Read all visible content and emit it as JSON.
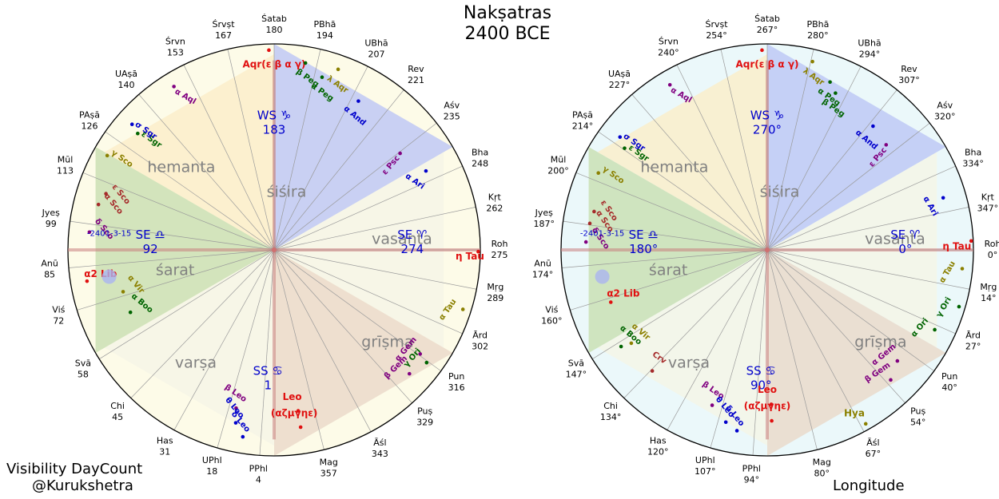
{
  "title": [
    "Nakṣatras",
    "2400 BCE"
  ],
  "footer": {
    "left_line1": "Visibility DayCount",
    "left_line2": "@Kurukshetra",
    "right": "Longitude"
  },
  "colors": {
    "left_background": "#fdfbe8",
    "right_background": "#ebf8fa",
    "sisira": "#bcc6f5",
    "vasanta": "#f5f5e6",
    "grisma": "#ead8c8",
    "varsa": "#f5f5e6",
    "sarat": "#c8dfb0",
    "hemanta": "#fbeec8",
    "axis": "#c97d7d",
    "season_text": "#808080",
    "marker_text": "#0000cc",
    "red": "#e01010",
    "green": "#006400",
    "blue": "#0000cc",
    "purple": "#800080",
    "olive": "#8b8000",
    "brown": "#a52a2a"
  },
  "seasons": [
    "śiśira",
    "vasanta",
    "grīṣma",
    "varṣa",
    "śarat",
    "hemanta"
  ],
  "date_label": "-2401-3-15",
  "left_chart": {
    "markers": [
      {
        "name": "WS ♑",
        "value": "183"
      },
      {
        "name": "SE ♈",
        "value": "274"
      },
      {
        "name": "SS ♋",
        "value": "1"
      },
      {
        "name": "SE ♎",
        "value": "92"
      }
    ],
    "nakshatras": [
      {
        "name": "Śatab",
        "value": "180",
        "angle": 90
      },
      {
        "name": "PBhā",
        "value": "194",
        "angle": 77
      },
      {
        "name": "UBhā",
        "value": "207",
        "angle": 63
      },
      {
        "name": "Rev",
        "value": "221",
        "angle": 51
      },
      {
        "name": "Aśv",
        "value": "235",
        "angle": 38
      },
      {
        "name": "Bha",
        "value": "248",
        "angle": 24
      },
      {
        "name": "Kṛt",
        "value": "262",
        "angle": 12
      },
      {
        "name": "Roh",
        "value": "275",
        "angle": 0
      },
      {
        "name": "Mṛg",
        "value": "289",
        "angle": -11
      },
      {
        "name": "Ārd",
        "value": "302",
        "angle": -24
      },
      {
        "name": "Pun",
        "value": "316",
        "angle": -36
      },
      {
        "name": "Puṣ",
        "value": "329",
        "angle": -48
      },
      {
        "name": "Āśl",
        "value": "343",
        "angle": -62
      },
      {
        "name": "Mag",
        "value": "357",
        "angle": -76
      },
      {
        "name": "PPhl",
        "value": "4",
        "angle": -94
      },
      {
        "name": "UPhl",
        "value": "18",
        "angle": -106
      },
      {
        "name": "Has",
        "value": "31",
        "angle": -119
      },
      {
        "name": "Chi",
        "value": "45",
        "angle": -134
      },
      {
        "name": "Svā",
        "value": "58",
        "angle": -148
      },
      {
        "name": "Viś",
        "value": "72",
        "angle": -163
      },
      {
        "name": "Anū",
        "value": "85",
        "angle": -175
      },
      {
        "name": "Jyeṣ",
        "value": "99",
        "angle": 172
      },
      {
        "name": "Mūl",
        "value": "113",
        "angle": 158
      },
      {
        "name": "PAṣā",
        "value": "126",
        "angle": 145
      },
      {
        "name": "UAṣā",
        "value": "140",
        "angle": 131
      },
      {
        "name": "Śrvn",
        "value": "153",
        "angle": 116
      },
      {
        "name": "Śrvṣt",
        "value": "167",
        "angle": 103
      }
    ],
    "stars": [
      {
        "label": "Aqr(ε β α γ)",
        "color": "red",
        "bold": true,
        "r": 0.9,
        "a": 90,
        "rot": 0
      },
      {
        "label": "β Peg",
        "color": "green",
        "bold": true,
        "r": 0.85,
        "a": 79,
        "rot": 35
      },
      {
        "label": "α Peg",
        "color": "green",
        "bold": true,
        "r": 0.8,
        "a": 73,
        "rot": 35
      },
      {
        "label": "λ Aqr",
        "color": "olive",
        "bold": true,
        "r": 0.86,
        "a": 69,
        "rot": 35
      },
      {
        "label": "α And",
        "color": "blue",
        "bold": true,
        "r": 0.76,
        "a": 59,
        "rot": 40
      },
      {
        "label": "ε Psc",
        "color": "purple",
        "bold": true,
        "r": 0.7,
        "a": 36,
        "rot": -50
      },
      {
        "label": "α Ari",
        "color": "blue",
        "bold": true,
        "r": 0.76,
        "a": 26,
        "rot": 35
      },
      {
        "label": "η Tau",
        "color": "red",
        "bold": true,
        "r": 0.95,
        "a": -2,
        "rot": 0
      },
      {
        "label": "α Tau",
        "color": "olive",
        "bold": true,
        "r": 0.89,
        "a": -19,
        "rot": -55
      },
      {
        "label": "γ Ori",
        "color": "green",
        "bold": true,
        "r": 0.85,
        "a": -38,
        "rot": -50
      },
      {
        "label": "α Gem",
        "color": "purple",
        "bold": true,
        "r": 0.8,
        "a": -37,
        "rot": -50
      },
      {
        "label": "β Gem",
        "color": "purple",
        "bold": true,
        "r": 0.82,
        "a": -44,
        "rot": -45
      },
      {
        "label": "Leo",
        "color": "red",
        "bold": true,
        "r": 0.72,
        "a": -83,
        "rot": 0
      },
      {
        "label": "(αζμγηε)",
        "color": "red",
        "bold": true,
        "r": 0.8,
        "a": -83,
        "rot": 0
      },
      {
        "label": "β Leo",
        "color": "purple",
        "bold": true,
        "r": 0.72,
        "a": -105,
        "rot": 35
      },
      {
        "label": "θ Leo",
        "color": "blue",
        "bold": true,
        "r": 0.79,
        "a": -104,
        "rot": 50
      },
      {
        "label": "δ Leo",
        "color": "blue",
        "bold": true,
        "r": 0.85,
        "a": -101,
        "rot": 50
      },
      {
        "label": "α Boo",
        "color": "green",
        "bold": true,
        "r": 0.69,
        "a": -158,
        "rot": 40
      },
      {
        "label": "α Vir",
        "color": "olive",
        "bold": true,
        "r": 0.69,
        "a": -166,
        "rot": 50
      },
      {
        "label": "α2 Lib",
        "color": "red",
        "bold": true,
        "r": 0.85,
        "a": -172,
        "rot": 0
      },
      {
        "label": "δ Sco",
        "color": "purple",
        "bold": true,
        "r": 0.83,
        "a": 173,
        "rot": 50
      },
      {
        "label": "α Sco",
        "color": "brown",
        "bold": true,
        "r": 0.81,
        "a": 164,
        "rot": 50
      },
      {
        "label": "ε Sco",
        "color": "brown",
        "bold": true,
        "r": 0.79,
        "a": 160,
        "rot": 50
      },
      {
        "label": "γ Sco",
        "color": "olive",
        "bold": true,
        "r": 0.86,
        "a": 149,
        "rot": 35
      },
      {
        "label": "ε Sgr",
        "color": "green",
        "bold": true,
        "r": 0.8,
        "a": 138,
        "rot": 35
      },
      {
        "label": "σ Sgr",
        "color": "blue",
        "bold": true,
        "r": 0.85,
        "a": 137,
        "rot": 35
      },
      {
        "label": "α Aql",
        "color": "purple",
        "bold": true,
        "r": 0.86,
        "a": 120,
        "rot": 30
      }
    ]
  },
  "right_chart": {
    "markers": [
      {
        "name": "WS ♑",
        "value": "270°"
      },
      {
        "name": "SE ♈",
        "value": "0°"
      },
      {
        "name": "SS ♋",
        "value": "90°"
      },
      {
        "name": "SE ♎",
        "value": "180°"
      }
    ],
    "nakshatras": [
      {
        "name": "Śatab",
        "value": "267°",
        "angle": 90
      },
      {
        "name": "PBhā",
        "value": "280°",
        "angle": 77
      },
      {
        "name": "UBhā",
        "value": "294°",
        "angle": 63
      },
      {
        "name": "Rev",
        "value": "307°",
        "angle": 51
      },
      {
        "name": "Aśv",
        "value": "320°",
        "angle": 38
      },
      {
        "name": "Bha",
        "value": "334°",
        "angle": 24
      },
      {
        "name": "Kṛt",
        "value": "347°",
        "angle": 12
      },
      {
        "name": "Roh",
        "value": "0°",
        "angle": 0
      },
      {
        "name": "Mṛg",
        "value": "14°",
        "angle": -11
      },
      {
        "name": "Ārd",
        "value": "27°",
        "angle": -24
      },
      {
        "name": "Pun",
        "value": "40°",
        "angle": -36
      },
      {
        "name": "Puṣ",
        "value": "54°",
        "angle": -48
      },
      {
        "name": "Āśl",
        "value": "67°",
        "angle": -62
      },
      {
        "name": "Mag",
        "value": "80°",
        "angle": -76
      },
      {
        "name": "PPhl",
        "value": "94°",
        "angle": -94
      },
      {
        "name": "UPhl",
        "value": "107°",
        "angle": -106
      },
      {
        "name": "Has",
        "value": "120°",
        "angle": -119
      },
      {
        "name": "Chi",
        "value": "134°",
        "angle": -134
      },
      {
        "name": "Svā",
        "value": "147°",
        "angle": -148
      },
      {
        "name": "Viś",
        "value": "160°",
        "angle": -163
      },
      {
        "name": "Anū",
        "value": "174°",
        "angle": -175
      },
      {
        "name": "Jyeṣ",
        "value": "187°",
        "angle": 172
      },
      {
        "name": "Mūl",
        "value": "200°",
        "angle": 158
      },
      {
        "name": "PAṣā",
        "value": "214°",
        "angle": 145
      },
      {
        "name": "UAṣā",
        "value": "227°",
        "angle": 131
      },
      {
        "name": "Śrvn",
        "value": "240°",
        "angle": 116
      },
      {
        "name": "Śrvṣt",
        "value": "254°",
        "angle": 103
      }
    ],
    "stars": [
      {
        "label": "Aqr(ε β α γ)",
        "color": "red",
        "bold": true,
        "r": 0.9,
        "a": 90,
        "rot": 0
      },
      {
        "label": "λ Aqr",
        "color": "olive",
        "bold": true,
        "r": 0.87,
        "a": 75,
        "rot": 35
      },
      {
        "label": "α Peg",
        "color": "green",
        "bold": true,
        "r": 0.8,
        "a": 68,
        "rot": 35
      },
      {
        "label": "β Peg",
        "color": "green",
        "bold": true,
        "r": 0.76,
        "a": 65,
        "rot": 35
      },
      {
        "label": "α And",
        "color": "blue",
        "bold": true,
        "r": 0.72,
        "a": 48,
        "rot": 40
      },
      {
        "label": "ε Psc",
        "color": "purple",
        "bold": true,
        "r": 0.7,
        "a": 40,
        "rot": -50
      },
      {
        "label": "α Ari",
        "color": "blue",
        "bold": true,
        "r": 0.82,
        "a": 15,
        "rot": 60
      },
      {
        "label": "η Tau",
        "color": "red",
        "bold": true,
        "r": 0.92,
        "a": 1,
        "rot": 0
      },
      {
        "label": "α Tau",
        "color": "olive",
        "bold": true,
        "r": 0.88,
        "a": -7,
        "rot": -60
      },
      {
        "label": "γ Ori",
        "color": "green",
        "bold": true,
        "r": 0.9,
        "a": -18,
        "rot": -60
      },
      {
        "label": "α Ori",
        "color": "green",
        "bold": true,
        "r": 0.83,
        "a": -27,
        "rot": -50
      },
      {
        "label": "α Gem",
        "color": "purple",
        "bold": true,
        "r": 0.76,
        "a": -42,
        "rot": -40
      },
      {
        "label": "β Gem",
        "color": "purple",
        "bold": true,
        "r": 0.8,
        "a": -48,
        "rot": -35
      },
      {
        "label": "Hya",
        "color": "olive",
        "bold": true,
        "r": 0.9,
        "a": -62,
        "rot": 0
      },
      {
        "label": "Leo",
        "color": "red",
        "bold": true,
        "r": 0.68,
        "a": -90,
        "rot": 0
      },
      {
        "label": "(αζμγηε)",
        "color": "red",
        "bold": true,
        "r": 0.76,
        "a": -90,
        "rot": 0
      },
      {
        "label": "β Leo",
        "color": "purple",
        "bold": true,
        "r": 0.73,
        "a": -111,
        "rot": 35
      },
      {
        "label": "θ Leo",
        "color": "blue",
        "bold": true,
        "r": 0.79,
        "a": -105,
        "rot": 50
      },
      {
        "label": "δ Leo",
        "color": "blue",
        "bold": true,
        "r": 0.82,
        "a": -101,
        "rot": 50
      },
      {
        "label": "Crv",
        "color": "brown",
        "bold": true,
        "r": 0.74,
        "a": -135,
        "rot": 35
      },
      {
        "label": "α Boo",
        "color": "green",
        "bold": true,
        "r": 0.78,
        "a": -148,
        "rot": 40
      },
      {
        "label": "α Vir",
        "color": "olive",
        "bold": true,
        "r": 0.73,
        "a": -147,
        "rot": 40
      },
      {
        "label": "α2 Lib",
        "color": "red",
        "bold": true,
        "r": 0.73,
        "a": -163,
        "rot": 0
      },
      {
        "label": "δ Sco",
        "color": "purple",
        "bold": true,
        "r": 0.81,
        "a": 176,
        "rot": 55
      },
      {
        "label": "α Sco",
        "color": "brown",
        "bold": true,
        "r": 0.8,
        "a": 170,
        "rot": 55
      },
      {
        "label": "ε Sco",
        "color": "brown",
        "bold": true,
        "r": 0.79,
        "a": 166,
        "rot": 55
      },
      {
        "label": "γ Sco",
        "color": "olive",
        "bold": true,
        "r": 0.83,
        "a": 154,
        "rot": 35
      },
      {
        "label": "ε Sgr",
        "color": "green",
        "bold": true,
        "r": 0.78,
        "a": 143,
        "rot": 35
      },
      {
        "label": "σ Sgr",
        "color": "blue",
        "bold": true,
        "r": 0.83,
        "a": 141,
        "rot": 35
      },
      {
        "label": "α Aql",
        "color": "purple",
        "bold": true,
        "r": 0.86,
        "a": 119,
        "rot": 30
      }
    ]
  }
}
